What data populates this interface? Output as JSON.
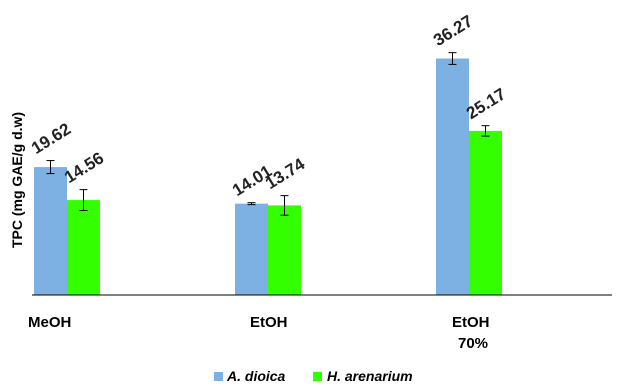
{
  "chart_data": {
    "type": "bar",
    "categories": [
      "MeOH",
      "EtOH",
      "EtOH\n70%"
    ],
    "ylabel": "TPC (mg GAE/g d.w)",
    "ylim": [
      0,
      40
    ],
    "grid": false,
    "legend_position": "bottom-center",
    "series": [
      {
        "name": "A. dioica",
        "color": "#7EB1E3",
        "values": [
          19.62,
          14.01,
          36.27
        ],
        "errors": [
          1.0,
          0.15,
          0.9
        ],
        "labels": [
          "19.62",
          "14.01",
          "36.27"
        ]
      },
      {
        "name": "H. arenarium",
        "color": "#33FF00",
        "values": [
          14.56,
          13.74,
          25.17
        ],
        "errors": [
          1.6,
          1.5,
          0.8
        ],
        "labels": [
          "14.56",
          "13.74",
          "25.17"
        ]
      }
    ]
  }
}
